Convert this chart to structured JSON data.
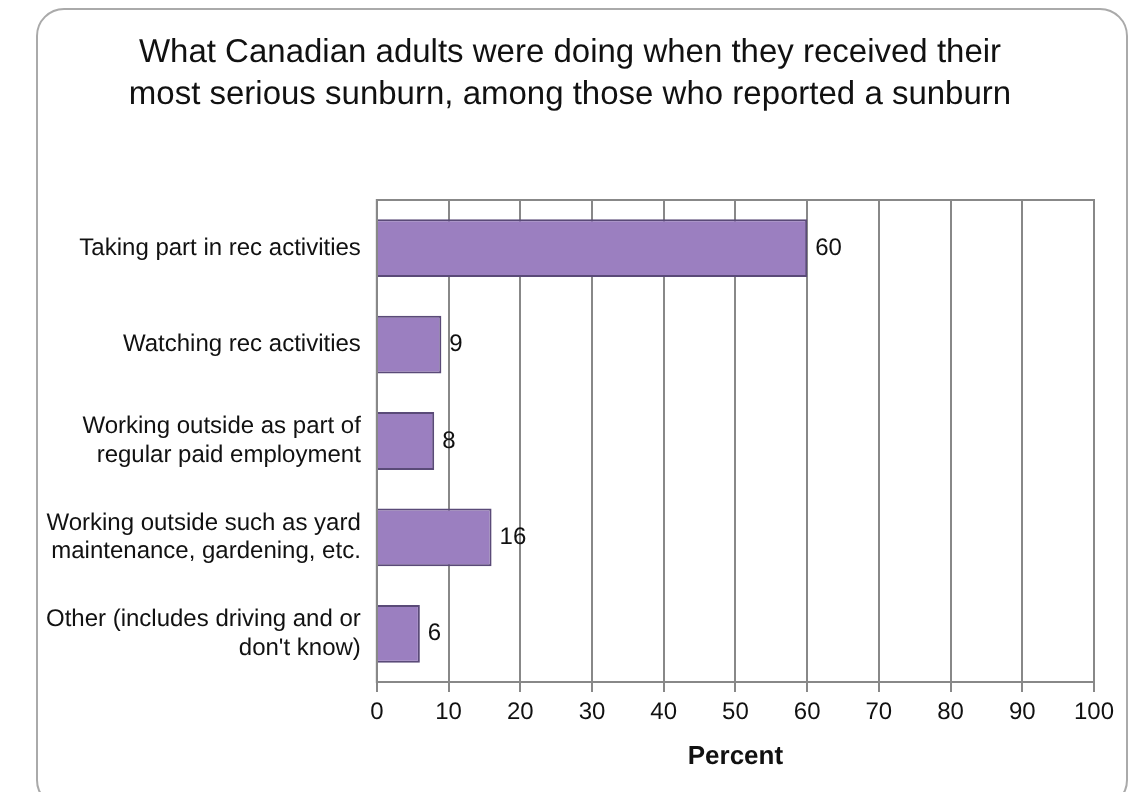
{
  "chart_data": {
    "type": "bar",
    "orientation": "horizontal",
    "title": "What Canadian adults were doing when they received their most serious sunburn, among those who reported a sunburn",
    "categories": [
      "Taking part in rec activities",
      "Watching rec activities",
      "Working outside as part of regular paid employment",
      "Working outside such as yard maintenance, gardening, etc.",
      "Other (includes driving and or don't know)"
    ],
    "values": [
      60,
      9,
      8,
      16,
      6
    ],
    "color": "#9b7fc0",
    "xlim": [
      0,
      100
    ],
    "xticks": [
      0,
      10,
      20,
      30,
      40,
      50,
      60,
      70,
      80,
      90,
      100
    ],
    "xlabel": "Percent",
    "grid": "x",
    "data_labels": true,
    "legend": false
  }
}
